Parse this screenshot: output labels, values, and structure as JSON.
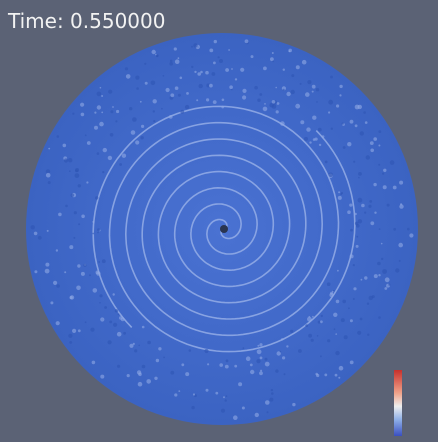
{
  "header": {
    "title": "Time: 0.550000"
  }
}
